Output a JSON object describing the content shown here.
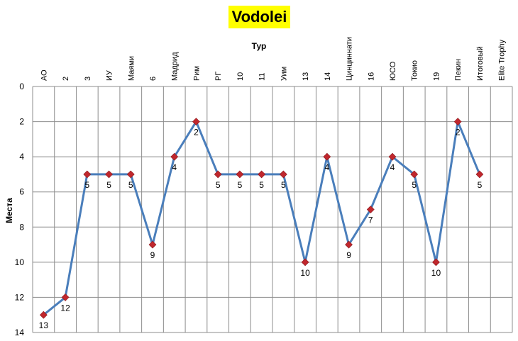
{
  "chart_data": {
    "type": "line",
    "title": "Vodolei",
    "xlabel": "Тур",
    "ylabel": "Места",
    "categories": [
      "АО",
      "2",
      "3",
      "ИУ",
      "Маями",
      "6",
      "Мадрид",
      "Рим",
      "РГ",
      "10",
      "11",
      "Уим",
      "13",
      "14",
      "Цинциннати",
      "16",
      "ЮСО",
      "Токио",
      "19",
      "Пекин",
      "Итоговый",
      "Elite Trophy"
    ],
    "series": [
      {
        "values": [
          13,
          12,
          5,
          5,
          5,
          9,
          4,
          2,
          5,
          5,
          5,
          5,
          10,
          4,
          9,
          7,
          4,
          5,
          10,
          2,
          5,
          null
        ]
      }
    ],
    "data_labels": [
      "13",
      "12",
      "5",
      "5",
      "5",
      "9",
      "4",
      "2",
      "5",
      "5",
      "5",
      "5",
      "10",
      "4",
      "9",
      "7",
      "4",
      "5",
      "10",
      "2",
      "5",
      ""
    ],
    "y_ticks": [
      "0",
      "2",
      "4",
      "6",
      "8",
      "10",
      "12",
      "14"
    ],
    "ylim": [
      0,
      14
    ],
    "y_inverted": true,
    "grid": true,
    "colors": {
      "line": "#4a7ebb",
      "marker": "#c0272d",
      "title_background": "#ffff00",
      "grid": "#8c8c8c"
    }
  }
}
